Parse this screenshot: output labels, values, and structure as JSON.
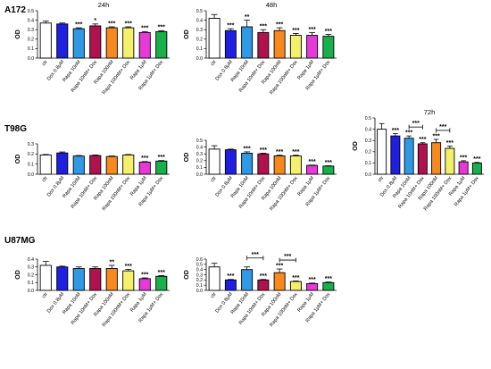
{
  "colors": [
    "#ffffff",
    "#1f1fe0",
    "#2e9ae6",
    "#b0124e",
    "#f7891f",
    "#f4f06a",
    "#e639d8",
    "#18b04a"
  ],
  "chart_data": [
    {
      "type": "bar",
      "cell_line": "A172",
      "title": "24h",
      "ylabel": "OD",
      "categories": [
        "ctr",
        "Dox 0.8μM",
        "Rapa 10nM",
        "Rapa 10nM+ Dox",
        "Rapa 100nM",
        "Rapa 100nM+ Dox",
        "Rapa 1μM",
        "Rapa 1μM+ Dox"
      ],
      "values": [
        0.37,
        0.36,
        0.31,
        0.34,
        0.32,
        0.32,
        0.27,
        0.28
      ],
      "errors": [
        0.02,
        0.01,
        0.01,
        0.02,
        0.01,
        0.01,
        0.01,
        0.01
      ],
      "sig": [
        "",
        "",
        "***",
        "*",
        "***",
        "***",
        "***",
        "***"
      ],
      "ylim": [
        0,
        0.5
      ],
      "yticks": [
        "0.0",
        "0.1",
        "0.2",
        "0.3",
        "0.4",
        "0.5"
      ],
      "brackets": []
    },
    {
      "type": "bar",
      "cell_line": "A172",
      "title": "48h",
      "ylabel": "OD",
      "categories": [
        "ctr",
        "Dox 0.8μM",
        "Rapa 10nM",
        "Rapa 10nM+ Dox",
        "Rapa 100nM",
        "Rapa 100nM+ Dox",
        "Rapa 1μM",
        "Rapa 1μM+ Dox"
      ],
      "values": [
        0.42,
        0.29,
        0.33,
        0.27,
        0.29,
        0.24,
        0.24,
        0.23
      ],
      "errors": [
        0.04,
        0.02,
        0.07,
        0.03,
        0.03,
        0.02,
        0.03,
        0.02
      ],
      "sig": [
        "",
        "***",
        "**",
        "***",
        "***",
        "***",
        "***",
        "***"
      ],
      "ylim": [
        0,
        0.5
      ],
      "yticks": [
        "0.0",
        "0.1",
        "0.2",
        "0.3",
        "0.4",
        "0.5"
      ],
      "brackets": []
    },
    {
      "type": "bar",
      "cell_line": "T98G",
      "title": "",
      "ylabel": "OD",
      "categories": [
        "ctr",
        "Dox 0.8μM",
        "Rapa 10nM",
        "Rapa 10nM+ Dox",
        "Rapa 100nM",
        "Rapa 100nM+ Dox",
        "Rapa 1μM",
        "Rapa 1μM+ Dox"
      ],
      "values": [
        0.19,
        0.21,
        0.18,
        0.185,
        0.175,
        0.19,
        0.12,
        0.13
      ],
      "errors": [
        0.005,
        0.01,
        0.005,
        0.005,
        0.005,
        0.005,
        0.005,
        0.005
      ],
      "sig": [
        "",
        "",
        "",
        "",
        "",
        "",
        "***",
        "***"
      ],
      "ylim": [
        0,
        0.3
      ],
      "yticks": [
        "0.0",
        "0.1",
        "0.2",
        "0.3"
      ],
      "brackets": []
    },
    {
      "type": "bar",
      "cell_line": "T98G",
      "title": "",
      "ylabel": "OD",
      "categories": [
        "ctr",
        "Dox 0.8μM",
        "Rapa 10nM",
        "Rapa 10nM+ Dox",
        "Rapa 100nM",
        "Rapa 100nM+ Dox",
        "Rapa 1μM",
        "Rapa 1μM+ Dox"
      ],
      "values": [
        0.37,
        0.36,
        0.31,
        0.3,
        0.27,
        0.27,
        0.13,
        0.12
      ],
      "errors": [
        0.05,
        0.01,
        0.02,
        0.01,
        0.01,
        0.01,
        0.005,
        0.005
      ],
      "sig": [
        "",
        "",
        "***",
        "***",
        "***",
        "***",
        "***",
        "***"
      ],
      "ylim": [
        0,
        0.5
      ],
      "yticks": [
        "0.0",
        "0.1",
        "0.2",
        "0.3",
        "0.4",
        "0.5"
      ],
      "brackets": []
    },
    {
      "type": "bar",
      "cell_line": "T98G",
      "title": "72h",
      "ylabel": "OD",
      "categories": [
        "ctr",
        "Dox 0.8μM",
        "Rapa 10nM",
        "Rapa 10nM+ Dox",
        "Rapa 100nM",
        "Rapa 100nM+ Dox",
        "Rapa 1μM",
        "Rapa 1μM+ Dox"
      ],
      "values": [
        0.4,
        0.34,
        0.32,
        0.27,
        0.28,
        0.23,
        0.11,
        0.1
      ],
      "errors": [
        0.05,
        0.02,
        0.02,
        0.01,
        0.03,
        0.02,
        0.01,
        0.005
      ],
      "sig": [
        "",
        "***",
        "***",
        "***",
        "***",
        "***",
        "***",
        "***"
      ],
      "ylim": [
        0,
        0.5
      ],
      "yticks": [
        "0.0",
        "0.1",
        "0.2",
        "0.3",
        "0.4",
        "0.5"
      ],
      "brackets": [
        {
          "from": 2,
          "to": 3,
          "label": "***"
        },
        {
          "from": 4,
          "to": 5,
          "label": "***"
        }
      ]
    },
    {
      "type": "bar",
      "cell_line": "U87MG",
      "title": "",
      "ylabel": "OD",
      "categories": [
        "ctr",
        "Dox 0.8μM",
        "Rapa 10nM",
        "Rapa 10nM+ Dox",
        "Rapa 100nM",
        "Rapa 100nM+ Dox",
        "Rapa 1μM",
        "Rapa 1μM+ Dox"
      ],
      "values": [
        0.32,
        0.3,
        0.28,
        0.28,
        0.28,
        0.25,
        0.15,
        0.18
      ],
      "errors": [
        0.05,
        0.01,
        0.02,
        0.02,
        0.04,
        0.02,
        0.01,
        0.01
      ],
      "sig": [
        "",
        "",
        "",
        "",
        "**",
        "***",
        "***",
        "***"
      ],
      "ylim": [
        0,
        0.4
      ],
      "yticks": [
        "0.0",
        "0.1",
        "0.2",
        "0.3",
        "0.4"
      ],
      "brackets": []
    },
    {
      "type": "bar",
      "cell_line": "U87MG",
      "title": "",
      "ylabel": "OD",
      "categories": [
        "ctr",
        "Dox 0.8μM",
        "Rapa 10nM",
        "Rapa 10nM+ Dox",
        "Rapa 100nM",
        "Rapa 100nM+ Dox",
        "Rapa 1μM",
        "Rapa 1μM+ Dox"
      ],
      "values": [
        0.45,
        0.2,
        0.4,
        0.2,
        0.34,
        0.17,
        0.13,
        0.15
      ],
      "errors": [
        0.07,
        0.01,
        0.05,
        0.01,
        0.07,
        0.01,
        0.01,
        0.01
      ],
      "sig": [
        "",
        "***",
        "",
        "***",
        "***",
        "***",
        "***",
        "***"
      ],
      "ylim": [
        0,
        0.6
      ],
      "yticks": [
        "0.0",
        "0.1",
        "0.2",
        "0.3",
        "0.4",
        "0.5",
        "0.6"
      ],
      "brackets": [
        {
          "from": 2,
          "to": 3,
          "label": "***"
        },
        {
          "from": 4,
          "to": 5,
          "label": "***"
        }
      ]
    }
  ]
}
